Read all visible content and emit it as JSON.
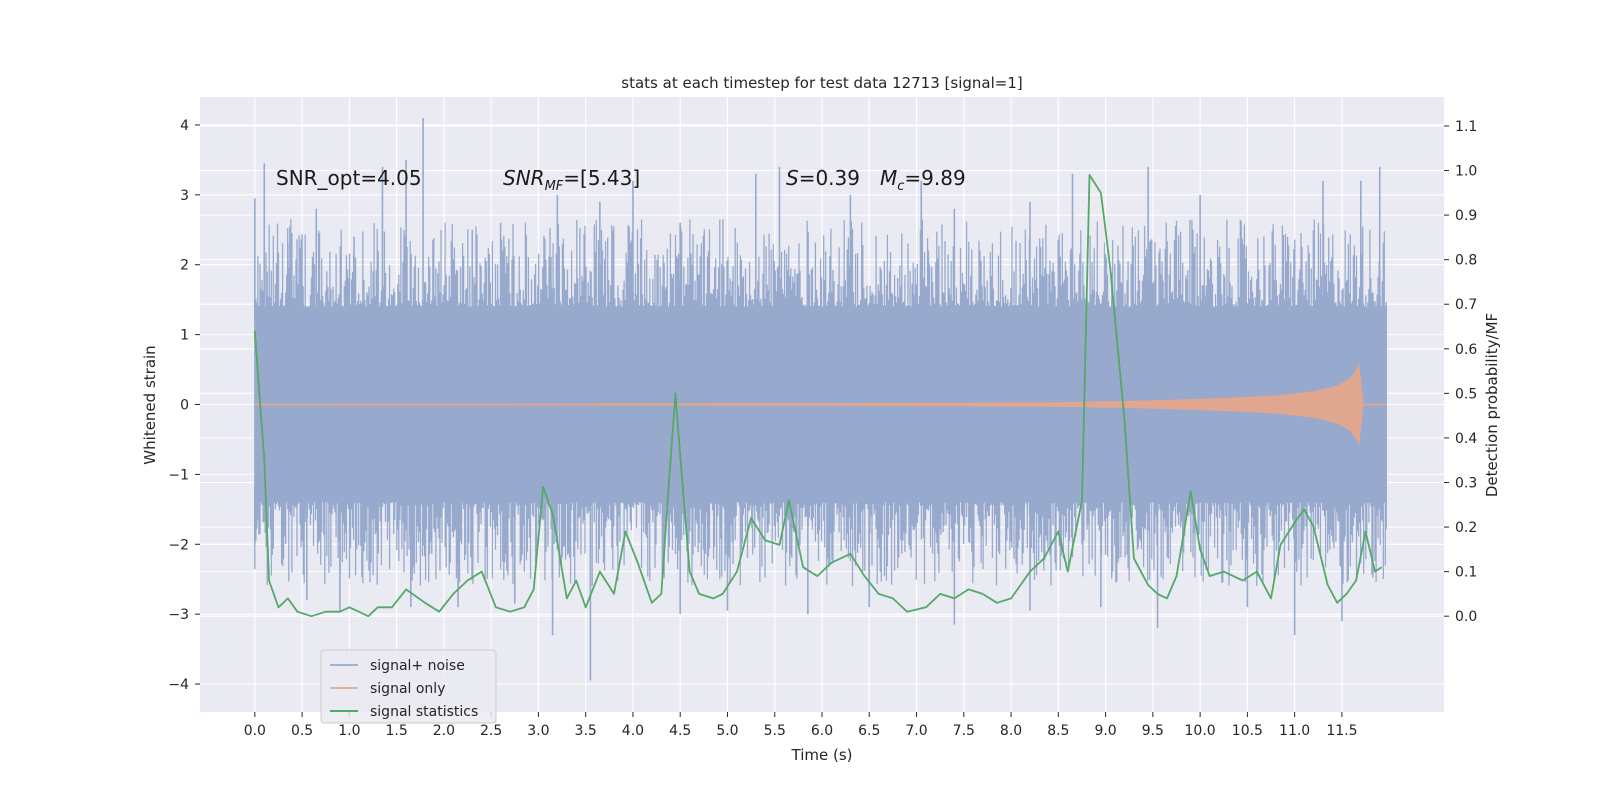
{
  "chart_data": {
    "type": "line",
    "title": "stats at each timestep for test data 12713 [signal=1]",
    "xlabel": "Time (s)",
    "ylabel": "Whitened strain",
    "y2label": "Detection probability/MF",
    "xlim": [
      -0.58,
      12.58
    ],
    "ylim": [
      -4.4,
      4.4
    ],
    "y2lim": [
      -0.215,
      1.165
    ],
    "xticks": [
      "0.0",
      "0.5",
      "1.0",
      "1.5",
      "2.0",
      "2.5",
      "3.0",
      "3.5",
      "4.0",
      "4.5",
      "5.0",
      "5.5",
      "6.0",
      "6.5",
      "7.0",
      "7.5",
      "8.0",
      "8.5",
      "9.0",
      "9.5",
      "10.0",
      "10.5",
      "11.0",
      "11.5"
    ],
    "yticks": [
      "4",
      "3",
      "2",
      "1",
      "0",
      "−1",
      "−2",
      "−3",
      "−4"
    ],
    "y2ticks": [
      "1.1",
      "1.0",
      "0.9",
      "0.8",
      "0.7",
      "0.6",
      "0.5",
      "0.4",
      "0.3",
      "0.2",
      "0.1",
      "0.0"
    ],
    "grid": true,
    "legend_placement": "lower-left",
    "colors": {
      "background": "#eaeaf2",
      "grid": "#ffffff",
      "noise": "#97aace",
      "signal": "#e7a58a",
      "stat": "#55a868"
    },
    "annotations": [
      {
        "prefix": "SNR_opt=4.05",
        "italic": "",
        "sub": "",
        "suffix": ""
      },
      {
        "prefix": "",
        "italic": "SNR",
        "sub": "MF",
        "suffix": "=[5.43]"
      },
      {
        "prefix": "",
        "italic": "S",
        "sub": "",
        "suffix": "=0.39"
      },
      {
        "prefix": "",
        "italic": "M",
        "sub": "c",
        "suffix": "=9.89"
      }
    ],
    "series": [
      {
        "name": "signal+ noise",
        "kind": "noise-band",
        "x_range": [
          0.0,
          11.97
        ],
        "core_band": [
          -1.35,
          1.35
        ],
        "upper_peaks": [
          {
            "x": 0.0,
            "y": 2.95
          },
          {
            "x": 0.1,
            "y": 3.45
          },
          {
            "x": 0.35,
            "y": 2.3
          },
          {
            "x": 0.65,
            "y": 2.8
          },
          {
            "x": 1.05,
            "y": 2.4
          },
          {
            "x": 1.35,
            "y": 3.4
          },
          {
            "x": 1.6,
            "y": 3.5
          },
          {
            "x": 1.78,
            "y": 4.1
          },
          {
            "x": 2.3,
            "y": 2.5
          },
          {
            "x": 2.6,
            "y": 2.6
          },
          {
            "x": 3.2,
            "y": 3.0
          },
          {
            "x": 3.65,
            "y": 2.9
          },
          {
            "x": 4.0,
            "y": 3.2
          },
          {
            "x": 4.5,
            "y": 2.6
          },
          {
            "x": 5.3,
            "y": 3.3
          },
          {
            "x": 5.55,
            "y": 3.4
          },
          {
            "x": 6.3,
            "y": 3.0
          },
          {
            "x": 7.05,
            "y": 3.2
          },
          {
            "x": 7.4,
            "y": 2.8
          },
          {
            "x": 8.2,
            "y": 2.9
          },
          {
            "x": 8.65,
            "y": 3.3
          },
          {
            "x": 9.45,
            "y": 3.4
          },
          {
            "x": 10.0,
            "y": 3.0
          },
          {
            "x": 11.3,
            "y": 3.2
          },
          {
            "x": 11.7,
            "y": 3.2
          },
          {
            "x": 11.9,
            "y": 3.4
          }
        ],
        "lower_peaks": [
          {
            "x": 0.0,
            "y": -2.0
          },
          {
            "x": 0.55,
            "y": -2.8
          },
          {
            "x": 0.9,
            "y": -2.95
          },
          {
            "x": 1.65,
            "y": -2.9
          },
          {
            "x": 2.15,
            "y": -2.9
          },
          {
            "x": 2.75,
            "y": -2.85
          },
          {
            "x": 3.15,
            "y": -3.3
          },
          {
            "x": 3.55,
            "y": -3.95
          },
          {
            "x": 4.5,
            "y": -3.0
          },
          {
            "x": 5.0,
            "y": -2.95
          },
          {
            "x": 5.85,
            "y": -3.0
          },
          {
            "x": 6.5,
            "y": -2.9
          },
          {
            "x": 7.4,
            "y": -3.15
          },
          {
            "x": 8.2,
            "y": -2.95
          },
          {
            "x": 8.95,
            "y": -2.9
          },
          {
            "x": 9.55,
            "y": -3.2
          },
          {
            "x": 10.5,
            "y": -2.9
          },
          {
            "x": 11.0,
            "y": -3.3
          },
          {
            "x": 11.5,
            "y": -3.1
          }
        ]
      },
      {
        "name": "signal only",
        "kind": "chirp",
        "x": [
          0.0,
          6.0,
          7.5,
          8.5,
          9.5,
          10.2,
          10.8,
          11.2,
          11.45,
          11.6,
          11.68,
          11.72,
          11.97
        ],
        "amplitude": [
          0.0,
          0.01,
          0.015,
          0.025,
          0.05,
          0.08,
          0.12,
          0.18,
          0.26,
          0.38,
          0.55,
          0.0,
          0.0
        ]
      },
      {
        "name": "signal statistics",
        "kind": "line",
        "x": [
          0.0,
          0.1,
          0.15,
          0.25,
          0.35,
          0.45,
          0.6,
          0.75,
          0.9,
          1.0,
          1.1,
          1.2,
          1.3,
          1.45,
          1.6,
          1.8,
          1.95,
          2.1,
          2.25,
          2.4,
          2.55,
          2.7,
          2.85,
          2.95,
          3.05,
          3.15,
          3.3,
          3.4,
          3.5,
          3.65,
          3.8,
          3.92,
          4.05,
          4.2,
          4.3,
          4.38,
          4.45,
          4.5,
          4.6,
          4.7,
          4.85,
          4.95,
          5.1,
          5.25,
          5.4,
          5.55,
          5.65,
          5.8,
          5.95,
          6.1,
          6.3,
          6.45,
          6.6,
          6.75,
          6.9,
          7.1,
          7.25,
          7.4,
          7.55,
          7.7,
          7.85,
          8.0,
          8.2,
          8.35,
          8.5,
          8.6,
          8.75,
          8.83,
          8.95,
          9.05,
          9.2,
          9.3,
          9.45,
          9.55,
          9.65,
          9.75,
          9.9,
          10.0,
          10.1,
          10.25,
          10.45,
          10.6,
          10.75,
          10.85,
          11.0,
          11.1,
          11.2,
          11.35,
          11.45,
          11.55,
          11.65,
          11.75,
          11.85,
          11.92
        ],
        "y": [
          0.64,
          0.35,
          0.08,
          0.02,
          0.04,
          0.01,
          0.0,
          0.01,
          0.01,
          0.02,
          0.01,
          0.0,
          0.02,
          0.02,
          0.06,
          0.03,
          0.01,
          0.05,
          0.08,
          0.1,
          0.02,
          0.01,
          0.02,
          0.06,
          0.29,
          0.23,
          0.04,
          0.08,
          0.02,
          0.1,
          0.05,
          0.19,
          0.12,
          0.03,
          0.05,
          0.3,
          0.5,
          0.36,
          0.1,
          0.05,
          0.04,
          0.05,
          0.1,
          0.22,
          0.17,
          0.16,
          0.26,
          0.11,
          0.09,
          0.12,
          0.14,
          0.09,
          0.05,
          0.04,
          0.01,
          0.02,
          0.05,
          0.04,
          0.06,
          0.05,
          0.03,
          0.04,
          0.1,
          0.13,
          0.19,
          0.1,
          0.26,
          0.99,
          0.95,
          0.78,
          0.44,
          0.13,
          0.07,
          0.05,
          0.04,
          0.09,
          0.28,
          0.15,
          0.09,
          0.1,
          0.08,
          0.1,
          0.04,
          0.16,
          0.21,
          0.24,
          0.2,
          0.07,
          0.03,
          0.05,
          0.08,
          0.19,
          0.1,
          0.11
        ]
      }
    ]
  }
}
